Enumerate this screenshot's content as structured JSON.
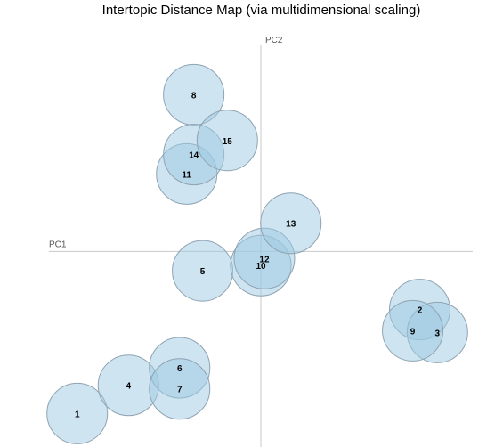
{
  "chart_data": {
    "type": "scatter",
    "title": "Intertopic Distance Map (via multidimensional scaling)",
    "xlabel": "PC1",
    "ylabel": "PC2",
    "xlim": [
      -0.6,
      0.6
    ],
    "ylim": [
      -0.55,
      0.6
    ],
    "bubble_color": "#9ecae1",
    "bubble_opacity": 0.5,
    "topics": [
      {
        "label": "1",
        "x": -0.52,
        "y": -0.46,
        "size": 1.0
      },
      {
        "label": "2",
        "x": 0.45,
        "y": -0.165,
        "size": 1.0
      },
      {
        "label": "3",
        "x": 0.5,
        "y": -0.23,
        "size": 1.0
      },
      {
        "label": "4",
        "x": -0.375,
        "y": -0.38,
        "size": 1.0
      },
      {
        "label": "5",
        "x": -0.165,
        "y": -0.055,
        "size": 1.0
      },
      {
        "label": "6",
        "x": -0.23,
        "y": -0.33,
        "size": 1.0
      },
      {
        "label": "7",
        "x": -0.23,
        "y": -0.39,
        "size": 1.0
      },
      {
        "label": "8",
        "x": -0.19,
        "y": 0.445,
        "size": 1.0
      },
      {
        "label": "9",
        "x": 0.43,
        "y": -0.225,
        "size": 1.0
      },
      {
        "label": "10",
        "x": 0.0,
        "y": -0.04,
        "size": 1.0
      },
      {
        "label": "11",
        "x": -0.21,
        "y": 0.22,
        "size": 1.0
      },
      {
        "label": "12",
        "x": 0.01,
        "y": -0.02,
        "size": 1.0
      },
      {
        "label": "13",
        "x": 0.085,
        "y": 0.08,
        "size": 1.0
      },
      {
        "label": "14",
        "x": -0.19,
        "y": 0.275,
        "size": 1.0
      },
      {
        "label": "15",
        "x": -0.095,
        "y": 0.315,
        "size": 1.0
      }
    ]
  }
}
